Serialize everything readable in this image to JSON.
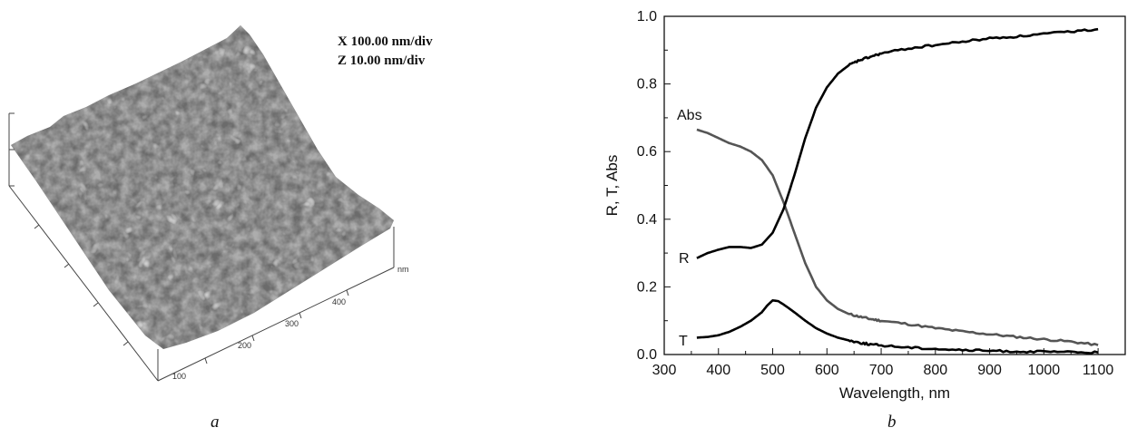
{
  "afm": {
    "scale_x": "X   100.00 nm/div",
    "scale_z": "Z   10.00 nm/div",
    "axis_unit": "nm",
    "ticks": [
      "100",
      "200",
      "300",
      "400"
    ],
    "surface_color": "#6b6b6b"
  },
  "labels": {
    "panel_a": "a",
    "panel_b": "b"
  },
  "chart_data": {
    "type": "line",
    "xlabel": "Wavelength,  nm",
    "ylabel": "R, T, Abs",
    "xlim": [
      300,
      1150
    ],
    "ylim": [
      0,
      1.0
    ],
    "xticks": [
      "300",
      "400",
      "500",
      "600",
      "700",
      "800",
      "900",
      "1000",
      "1100"
    ],
    "yticks": [
      "0.0",
      "0.2",
      "0.4",
      "0.6",
      "0.8",
      "1.0"
    ],
    "grid": false,
    "series": [
      {
        "name": "Abs",
        "color": "#555555",
        "x": [
          360,
          380,
          400,
          420,
          440,
          460,
          480,
          500,
          520,
          540,
          560,
          580,
          600,
          620,
          640,
          660,
          680,
          700,
          750,
          800,
          850,
          900,
          950,
          1000,
          1050,
          1100
        ],
        "y": [
          0.665,
          0.655,
          0.64,
          0.625,
          0.615,
          0.6,
          0.575,
          0.53,
          0.45,
          0.36,
          0.27,
          0.2,
          0.16,
          0.135,
          0.12,
          0.112,
          0.105,
          0.1,
          0.09,
          0.078,
          0.068,
          0.06,
          0.052,
          0.045,
          0.038,
          0.028
        ]
      },
      {
        "name": "R",
        "color": "#000000",
        "x": [
          360,
          380,
          400,
          420,
          440,
          460,
          480,
          500,
          520,
          540,
          560,
          580,
          600,
          620,
          640,
          660,
          680,
          700,
          750,
          800,
          850,
          900,
          950,
          1000,
          1050,
          1100
        ],
        "y": [
          0.285,
          0.3,
          0.31,
          0.318,
          0.318,
          0.315,
          0.325,
          0.36,
          0.43,
          0.53,
          0.64,
          0.73,
          0.79,
          0.83,
          0.855,
          0.87,
          0.88,
          0.89,
          0.905,
          0.915,
          0.925,
          0.935,
          0.94,
          0.948,
          0.955,
          0.962
        ]
      },
      {
        "name": "T",
        "color": "#000000",
        "x": [
          360,
          380,
          400,
          420,
          440,
          460,
          480,
          490,
          500,
          510,
          520,
          540,
          560,
          580,
          600,
          620,
          640,
          660,
          680,
          700,
          750,
          800,
          850,
          900,
          950,
          1000,
          1050,
          1100
        ],
        "y": [
          0.05,
          0.052,
          0.057,
          0.067,
          0.082,
          0.1,
          0.125,
          0.145,
          0.16,
          0.158,
          0.148,
          0.125,
          0.1,
          0.078,
          0.062,
          0.05,
          0.042,
          0.035,
          0.03,
          0.027,
          0.021,
          0.017,
          0.013,
          0.011,
          0.009,
          0.008,
          0.007,
          0.006
        ]
      }
    ]
  }
}
